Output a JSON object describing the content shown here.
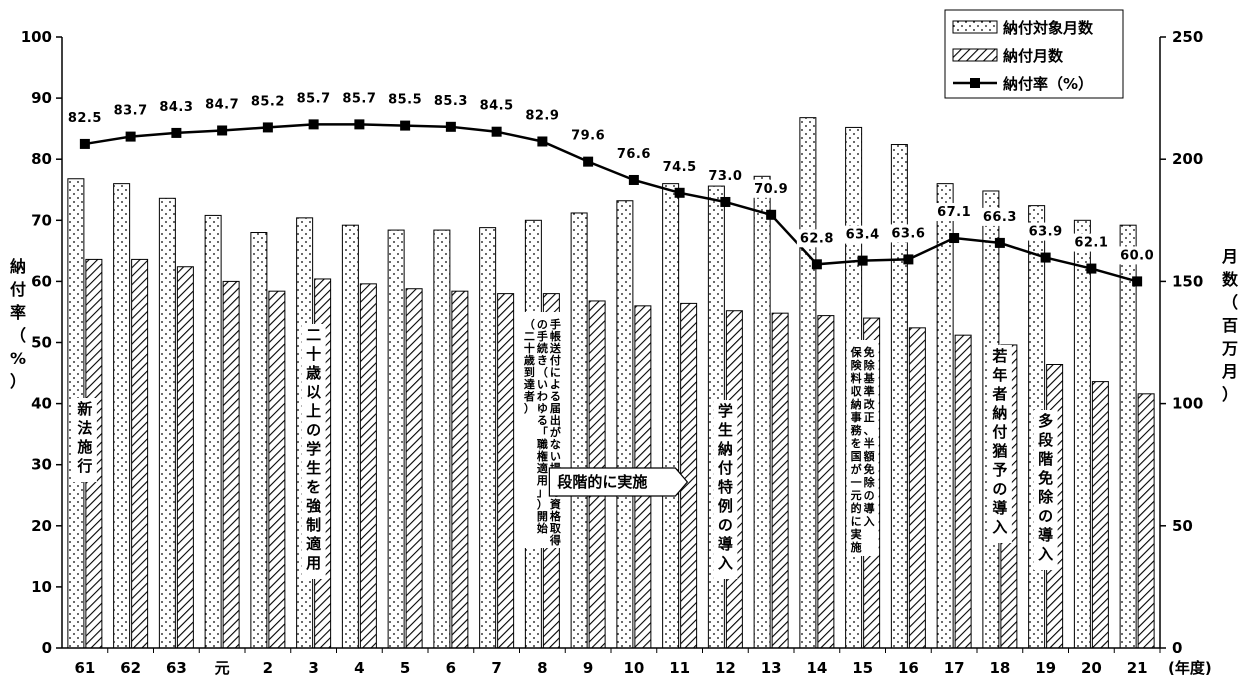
{
  "chart_data": {
    "type": "bar",
    "x_unit_label": "(年度)",
    "categories": [
      "61",
      "62",
      "63",
      "元",
      "2",
      "3",
      "4",
      "5",
      "6",
      "7",
      "8",
      "9",
      "10",
      "11",
      "12",
      "13",
      "14",
      "15",
      "16",
      "17",
      "18",
      "19",
      "20",
      "21"
    ],
    "series": [
      {
        "name": "納付対象月数",
        "axis": "right",
        "kind": "bar",
        "values": [
          192,
          190,
          184,
          177,
          170,
          176,
          173,
          171,
          171,
          172,
          175,
          178,
          183,
          190,
          189,
          193,
          217,
          213,
          206,
          190,
          187,
          181,
          175,
          173
        ]
      },
      {
        "name": "納付月数",
        "axis": "right",
        "kind": "bar",
        "values": [
          159,
          159,
          156,
          150,
          146,
          151,
          149,
          147,
          146,
          145,
          145,
          142,
          140,
          141,
          138,
          137,
          136,
          135,
          131,
          128,
          124,
          116,
          109,
          104
        ]
      },
      {
        "name": "納付率（%）",
        "axis": "left",
        "kind": "line",
        "values": [
          82.5,
          83.7,
          84.3,
          84.7,
          85.2,
          85.7,
          85.7,
          85.5,
          85.3,
          84.5,
          82.9,
          79.6,
          76.6,
          74.5,
          73.0,
          70.9,
          62.8,
          63.4,
          63.6,
          67.1,
          66.3,
          63.9,
          62.1,
          60.0
        ],
        "labels": [
          "82.5",
          "83.7",
          "84.3",
          "84.7",
          "85.2",
          "85.7",
          "85.7",
          "85.5",
          "85.3",
          "84.5",
          "82.9",
          "79.6",
          "76.6",
          "74.5",
          "73.0",
          "70.9",
          "62.8",
          "63.4",
          "63.6",
          "67.1",
          "66.3",
          "63.9",
          "62.1",
          "60.0"
        ]
      }
    ],
    "y_left": {
      "label": "納付率（%）",
      "min": 0,
      "max": 100,
      "ticks": [
        0,
        10,
        20,
        30,
        40,
        50,
        60,
        70,
        80,
        90,
        100
      ]
    },
    "y_right": {
      "label": "月数（百万月）",
      "min": 0,
      "max": 250,
      "ticks": [
        0,
        50,
        100,
        150,
        200,
        250
      ]
    },
    "legend_position": "top-right",
    "annotations": [
      {
        "category_index": 0,
        "lines": [
          "新法施行"
        ]
      },
      {
        "category_index": 5,
        "lines": [
          "二十歳以上の学生を強制適用"
        ]
      },
      {
        "category_index": 10,
        "lines": [
          "手帳送付による届出がない場合の資格取得",
          "の手続き（いわゆる「職権適用」）開始",
          "（二十歳到達者）"
        ]
      },
      {
        "category_index": 10,
        "arrow": true,
        "lines": [
          "段階的に実施"
        ]
      },
      {
        "category_index": 14,
        "lines": [
          "学生納付特例の導入"
        ]
      },
      {
        "category_index": 17,
        "lines": [
          "免除基準改正、半額免除の導入",
          "保険料収納事務を国が一元的に実施"
        ]
      },
      {
        "category_index": 20,
        "lines": [
          "若年者納付猶予の導入"
        ]
      },
      {
        "category_index": 21,
        "lines": [
          "多段階免除の導入"
        ]
      }
    ],
    "colors": {
      "bar_outline": "#000000",
      "line": "#000000",
      "background": "#ffffff"
    }
  }
}
